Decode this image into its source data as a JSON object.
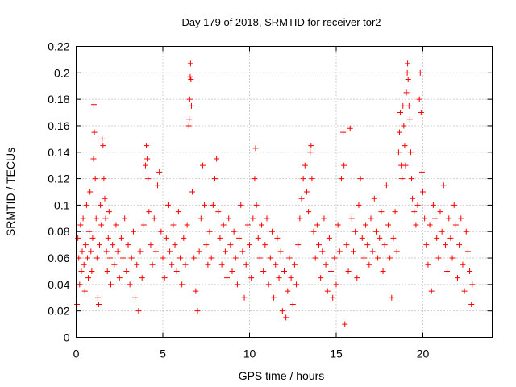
{
  "chart_data": {
    "type": "scatter",
    "title": "Day 179 of 2018, SRMTID for receiver tor2",
    "xlabel": "GPS time / hours",
    "ylabel": "SRMTID / TECUs",
    "xlim": [
      0,
      24
    ],
    "ylim": [
      0,
      0.22
    ],
    "xticks": [
      0,
      5,
      10,
      15,
      20
    ],
    "xtick_labels": [
      "0",
      "5",
      "10",
      "15",
      "20"
    ],
    "yticks": [
      0,
      0.02,
      0.04,
      0.06,
      0.08,
      0.1,
      0.12,
      0.14,
      0.16,
      0.18,
      0.2,
      0.22
    ],
    "ytick_labels": [
      "0",
      "0.02",
      "0.04",
      "0.06",
      "0.08",
      "0.1",
      "0.12",
      "0.14",
      "0.16",
      "0.18",
      "0.2",
      "0.22"
    ],
    "grid": true,
    "marker": "+",
    "series": [
      {
        "name": "SRMTID",
        "color": "#ff0000",
        "points": [
          [
            0.05,
            0.025
          ],
          [
            0.1,
            0.075
          ],
          [
            0.15,
            0.06
          ],
          [
            0.2,
            0.04
          ],
          [
            0.25,
            0.085
          ],
          [
            0.3,
            0.05
          ],
          [
            0.35,
            0.065
          ],
          [
            0.4,
            0.09
          ],
          [
            0.45,
            0.055
          ],
          [
            0.5,
            0.035
          ],
          [
            0.55,
            0.07
          ],
          [
            0.6,
            0.1
          ],
          [
            0.65,
            0.06
          ],
          [
            0.7,
            0.045
          ],
          [
            0.75,
            0.08
          ],
          [
            0.8,
            0.11
          ],
          [
            0.85,
            0.065
          ],
          [
            0.9,
            0.05
          ],
          [
            0.95,
            0.075
          ],
          [
            1.0,
            0.135
          ],
          [
            1.02,
            0.176
          ],
          [
            1.05,
            0.155
          ],
          [
            1.1,
            0.12
          ],
          [
            1.15,
            0.09
          ],
          [
            1.2,
            0.06
          ],
          [
            1.25,
            0.03
          ],
          [
            1.3,
            0.025
          ],
          [
            1.35,
            0.07
          ],
          [
            1.4,
            0.1
          ],
          [
            1.45,
            0.085
          ],
          [
            1.5,
            0.15
          ],
          [
            1.55,
            0.145
          ],
          [
            1.6,
            0.12
          ],
          [
            1.65,
            0.105
          ],
          [
            1.7,
            0.09
          ],
          [
            1.75,
            0.065
          ],
          [
            1.8,
            0.05
          ],
          [
            1.85,
            0.075
          ],
          [
            1.9,
            0.095
          ],
          [
            1.95,
            0.06
          ],
          [
            2.0,
            0.04
          ],
          [
            2.1,
            0.07
          ],
          [
            2.2,
            0.055
          ],
          [
            2.3,
            0.085
          ],
          [
            2.4,
            0.065
          ],
          [
            2.5,
            0.045
          ],
          [
            2.6,
            0.075
          ],
          [
            2.7,
            0.06
          ],
          [
            2.8,
            0.09
          ],
          [
            2.9,
            0.05
          ],
          [
            3.0,
            0.07
          ],
          [
            3.1,
            0.04
          ],
          [
            3.2,
            0.06
          ],
          [
            3.3,
            0.08
          ],
          [
            3.4,
            0.03
          ],
          [
            3.5,
            0.055
          ],
          [
            3.6,
            0.02
          ],
          [
            3.7,
            0.065
          ],
          [
            3.8,
            0.045
          ],
          [
            3.9,
            0.085
          ],
          [
            4.0,
            0.13
          ],
          [
            4.05,
            0.145
          ],
          [
            4.1,
            0.135
          ],
          [
            4.15,
            0.12
          ],
          [
            4.2,
            0.095
          ],
          [
            4.3,
            0.07
          ],
          [
            4.4,
            0.055
          ],
          [
            4.5,
            0.09
          ],
          [
            4.6,
            0.065
          ],
          [
            4.7,
            0.115
          ],
          [
            4.8,
            0.125
          ],
          [
            4.9,
            0.08
          ],
          [
            5.0,
            0.06
          ],
          [
            5.1,
            0.045
          ],
          [
            5.2,
            0.075
          ],
          [
            5.3,
            0.1
          ],
          [
            5.4,
            0.065
          ],
          [
            5.5,
            0.055
          ],
          [
            5.6,
            0.085
          ],
          [
            5.7,
            0.07
          ],
          [
            5.8,
            0.05
          ],
          [
            5.9,
            0.095
          ],
          [
            6.0,
            0.06
          ],
          [
            6.1,
            0.04
          ],
          [
            6.2,
            0.075
          ],
          [
            6.3,
            0.055
          ],
          [
            6.4,
            0.085
          ],
          [
            6.5,
            0.16
          ],
          [
            6.52,
            0.165
          ],
          [
            6.55,
            0.18
          ],
          [
            6.58,
            0.197
          ],
          [
            6.6,
            0.207
          ],
          [
            6.62,
            0.195
          ],
          [
            6.65,
            0.175
          ],
          [
            6.7,
            0.11
          ],
          [
            6.8,
            0.06
          ],
          [
            6.9,
            0.035
          ],
          [
            7.0,
            0.02
          ],
          [
            7.1,
            0.065
          ],
          [
            7.2,
            0.09
          ],
          [
            7.3,
            0.13
          ],
          [
            7.4,
            0.1
          ],
          [
            7.5,
            0.07
          ],
          [
            7.6,
            0.055
          ],
          [
            7.7,
            0.08
          ],
          [
            7.8,
            0.06
          ],
          [
            7.9,
            0.1
          ],
          [
            8.0,
            0.12
          ],
          [
            8.1,
            0.135
          ],
          [
            8.2,
            0.095
          ],
          [
            8.3,
            0.075
          ],
          [
            8.4,
            0.055
          ],
          [
            8.5,
            0.085
          ],
          [
            8.6,
            0.065
          ],
          [
            8.7,
            0.045
          ],
          [
            8.8,
            0.09
          ],
          [
            8.9,
            0.07
          ],
          [
            9.0,
            0.05
          ],
          [
            9.1,
            0.08
          ],
          [
            9.2,
            0.06
          ],
          [
            9.3,
            0.04
          ],
          [
            9.4,
            0.075
          ],
          [
            9.5,
            0.1
          ],
          [
            9.6,
            0.065
          ],
          [
            9.7,
            0.03
          ],
          [
            9.8,
            0.055
          ],
          [
            9.9,
            0.085
          ],
          [
            10.0,
            0.07
          ],
          [
            10.1,
            0.045
          ],
          [
            10.2,
            0.09
          ],
          [
            10.3,
            0.12
          ],
          [
            10.35,
            0.143
          ],
          [
            10.4,
            0.1
          ],
          [
            10.5,
            0.075
          ],
          [
            10.6,
            0.06
          ],
          [
            10.7,
            0.085
          ],
          [
            10.8,
            0.05
          ],
          [
            10.9,
            0.07
          ],
          [
            11.0,
            0.09
          ],
          [
            11.1,
            0.04
          ],
          [
            11.2,
            0.06
          ],
          [
            11.3,
            0.08
          ],
          [
            11.4,
            0.03
          ],
          [
            11.5,
            0.055
          ],
          [
            11.6,
            0.075
          ],
          [
            11.7,
            0.045
          ],
          [
            11.8,
            0.065
          ],
          [
            11.9,
            0.02
          ],
          [
            12.0,
            0.05
          ],
          [
            12.1,
            0.015
          ],
          [
            12.2,
            0.035
          ],
          [
            12.3,
            0.06
          ],
          [
            12.4,
            0.045
          ],
          [
            12.5,
            0.025
          ],
          [
            12.6,
            0.055
          ],
          [
            12.7,
            0.04
          ],
          [
            12.8,
            0.07
          ],
          [
            12.9,
            0.09
          ],
          [
            13.0,
            0.105
          ],
          [
            13.1,
            0.12
          ],
          [
            13.2,
            0.13
          ],
          [
            13.3,
            0.11
          ],
          [
            13.4,
            0.095
          ],
          [
            13.5,
            0.14
          ],
          [
            13.55,
            0.145
          ],
          [
            13.6,
            0.12
          ],
          [
            13.7,
            0.08
          ],
          [
            13.8,
            0.06
          ],
          [
            13.9,
            0.085
          ],
          [
            14.0,
            0.07
          ],
          [
            14.1,
            0.045
          ],
          [
            14.2,
            0.065
          ],
          [
            14.3,
            0.09
          ],
          [
            14.4,
            0.055
          ],
          [
            14.5,
            0.035
          ],
          [
            14.6,
            0.075
          ],
          [
            14.7,
            0.05
          ],
          [
            14.8,
            0.03
          ],
          [
            14.9,
            0.06
          ],
          [
            15.0,
            0.04
          ],
          [
            15.1,
            0.085
          ],
          [
            15.2,
            0.065
          ],
          [
            15.3,
            0.12
          ],
          [
            15.4,
            0.155
          ],
          [
            15.45,
            0.13
          ],
          [
            15.5,
            0.01
          ],
          [
            15.6,
            0.07
          ],
          [
            15.7,
            0.05
          ],
          [
            15.8,
            0.158
          ],
          [
            15.9,
            0.09
          ],
          [
            16.0,
            0.065
          ],
          [
            16.1,
            0.08
          ],
          [
            16.2,
            0.045
          ],
          [
            16.3,
            0.1
          ],
          [
            16.4,
            0.12
          ],
          [
            16.5,
            0.075
          ],
          [
            16.6,
            0.06
          ],
          [
            16.7,
            0.085
          ],
          [
            16.8,
            0.07
          ],
          [
            16.9,
            0.055
          ],
          [
            17.0,
            0.09
          ],
          [
            17.1,
            0.065
          ],
          [
            17.2,
            0.105
          ],
          [
            17.3,
            0.08
          ],
          [
            17.4,
            0.06
          ],
          [
            17.5,
            0.075
          ],
          [
            17.6,
            0.095
          ],
          [
            17.7,
            0.05
          ],
          [
            17.8,
            0.07
          ],
          [
            17.9,
            0.115
          ],
          [
            18.0,
            0.085
          ],
          [
            18.1,
            0.06
          ],
          [
            18.2,
            0.03
          ],
          [
            18.3,
            0.075
          ],
          [
            18.4,
            0.095
          ],
          [
            18.5,
            0.065
          ],
          [
            18.6,
            0.14
          ],
          [
            18.65,
            0.155
          ],
          [
            18.7,
            0.17
          ],
          [
            18.75,
            0.13
          ],
          [
            18.8,
            0.12
          ],
          [
            18.85,
            0.175
          ],
          [
            18.9,
            0.16
          ],
          [
            18.95,
            0.145
          ],
          [
            19.0,
            0.13
          ],
          [
            19.05,
            0.185
          ],
          [
            19.1,
            0.2
          ],
          [
            19.12,
            0.207
          ],
          [
            19.15,
            0.195
          ],
          [
            19.2,
            0.175
          ],
          [
            19.25,
            0.165
          ],
          [
            19.3,
            0.14
          ],
          [
            19.35,
            0.12
          ],
          [
            19.4,
            0.105
          ],
          [
            19.5,
            0.095
          ],
          [
            19.6,
            0.085
          ],
          [
            19.7,
            0.1
          ],
          [
            19.8,
            0.18
          ],
          [
            19.85,
            0.2
          ],
          [
            19.9,
            0.17
          ],
          [
            19.95,
            0.125
          ],
          [
            20.0,
            0.11
          ],
          [
            20.1,
            0.09
          ],
          [
            20.2,
            0.07
          ],
          [
            20.3,
            0.055
          ],
          [
            20.4,
            0.085
          ],
          [
            20.5,
            0.035
          ],
          [
            20.6,
            0.1
          ],
          [
            20.7,
            0.09
          ],
          [
            20.8,
            0.075
          ],
          [
            20.9,
            0.06
          ],
          [
            21.0,
            0.095
          ],
          [
            21.1,
            0.08
          ],
          [
            21.2,
            0.115
          ],
          [
            21.3,
            0.07
          ],
          [
            21.4,
            0.05
          ],
          [
            21.5,
            0.09
          ],
          [
            21.6,
            0.075
          ],
          [
            21.7,
            0.06
          ],
          [
            21.8,
            0.1
          ],
          [
            21.9,
            0.085
          ],
          [
            22.0,
            0.045
          ],
          [
            22.1,
            0.07
          ],
          [
            22.2,
            0.09
          ],
          [
            22.3,
            0.055
          ],
          [
            22.4,
            0.035
          ],
          [
            22.5,
            0.08
          ],
          [
            22.6,
            0.065
          ],
          [
            22.7,
            0.05
          ],
          [
            22.8,
            0.025
          ],
          [
            22.85,
            0.04
          ]
        ]
      }
    ]
  }
}
